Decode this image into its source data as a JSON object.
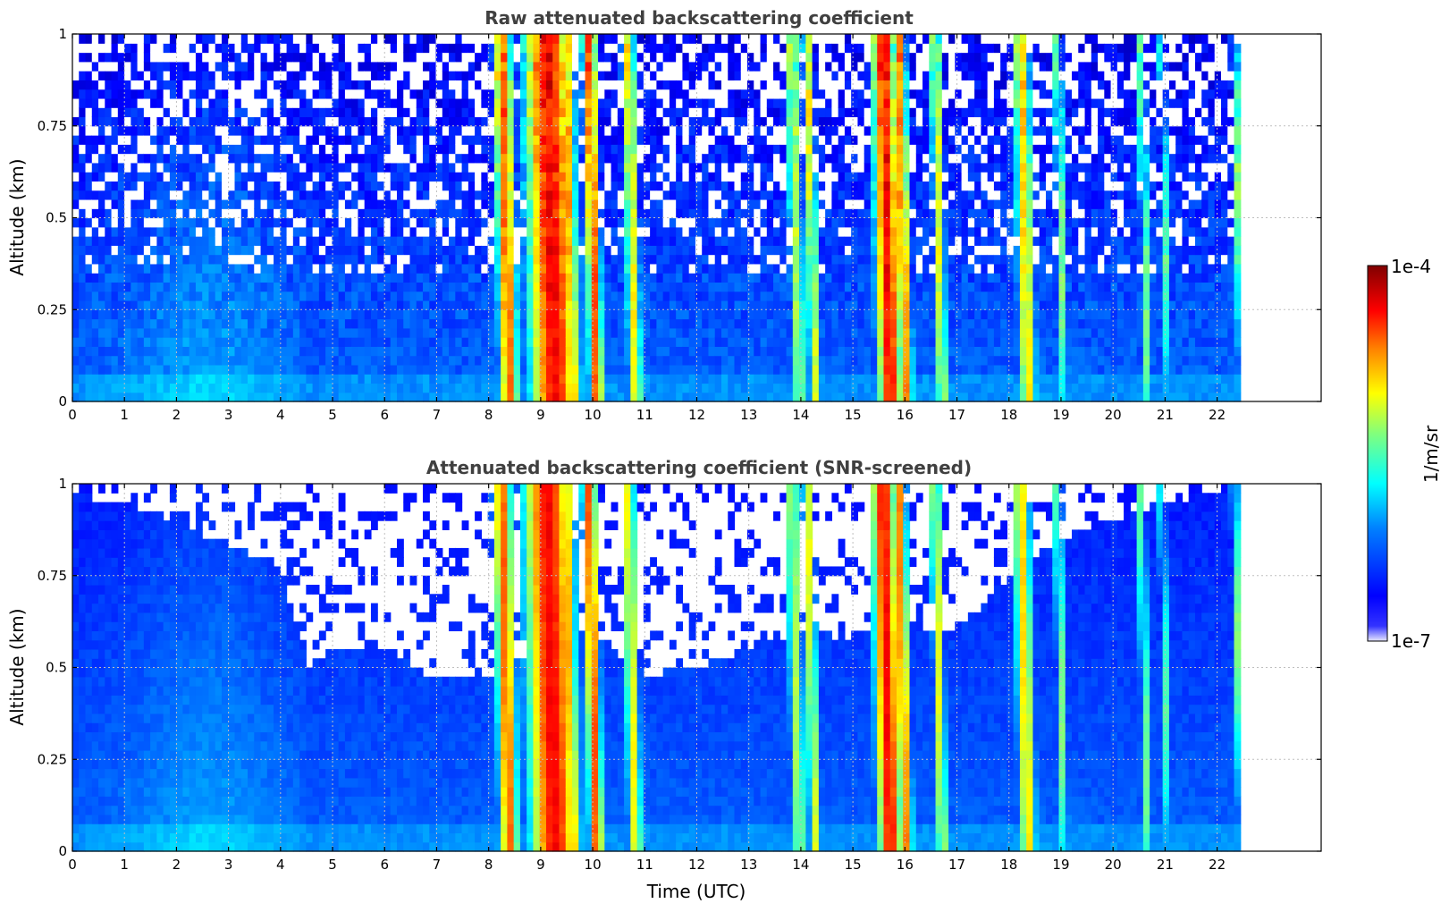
{
  "chart_data": [
    {
      "type": "heatmap",
      "title": "Raw attenuated backscattering coefficient",
      "xlabel": "",
      "ylabel": "Altitude (km)",
      "xlim": [
        0,
        24
      ],
      "ylim": [
        0,
        1
      ],
      "xticks": [
        "0",
        "1",
        "2",
        "3",
        "4",
        "5",
        "6",
        "7",
        "8",
        "9",
        "10",
        "11",
        "12",
        "13",
        "14",
        "15",
        "16",
        "17",
        "18",
        "19",
        "20",
        "21",
        "22"
      ],
      "yticks": [
        "0",
        "0.25",
        "0.5",
        "0.75",
        "1"
      ],
      "grid": true,
      "data_end_time": 22.45,
      "screened": false,
      "colormap": "jet",
      "color_scale": "log",
      "color_range": [
        1e-07,
        0.0001
      ],
      "features": [
        {
          "t": 8.33,
          "width": 0.2,
          "intensity": 0.78,
          "label": "vertical streak"
        },
        {
          "t": 9.2,
          "width": 0.5,
          "intensity": 0.88,
          "label": "vertical streak"
        },
        {
          "t": 9.55,
          "width": 0.15,
          "intensity": 0.7,
          "label": "vertical streak"
        },
        {
          "t": 10.0,
          "width": 0.15,
          "intensity": 0.8,
          "label": "vertical streak"
        },
        {
          "t": 10.75,
          "width": 0.15,
          "intensity": 0.62,
          "label": "vertical streak"
        },
        {
          "t": 13.9,
          "width": 0.15,
          "intensity": 0.55,
          "label": "vertical streak"
        },
        {
          "t": 14.2,
          "width": 0.12,
          "intensity": 0.6,
          "label": "vertical streak"
        },
        {
          "t": 15.65,
          "width": 0.25,
          "intensity": 0.88,
          "label": "vertical streak"
        },
        {
          "t": 15.95,
          "width": 0.15,
          "intensity": 0.75,
          "label": "vertical streak"
        },
        {
          "t": 16.65,
          "width": 0.12,
          "intensity": 0.6,
          "label": "vertical streak"
        },
        {
          "t": 18.3,
          "width": 0.18,
          "intensity": 0.66,
          "label": "vertical streak"
        },
        {
          "t": 19.0,
          "width": 0.1,
          "intensity": 0.5,
          "label": "vertical streak"
        },
        {
          "t": 20.6,
          "width": 0.1,
          "intensity": 0.48,
          "label": "vertical streak"
        },
        {
          "t": 21.0,
          "width": 0.08,
          "intensity": 0.45,
          "label": "vertical streak"
        },
        {
          "t": 22.4,
          "width": 0.08,
          "intensity": 0.5,
          "label": "vertical streak"
        }
      ]
    },
    {
      "type": "heatmap",
      "title": "Attenuated backscattering coefficient (SNR-screened)",
      "xlabel": "Time (UTC)",
      "ylabel": "Altitude (km)",
      "xlim": [
        0,
        24
      ],
      "ylim": [
        0,
        1
      ],
      "xticks": [
        "0",
        "1",
        "2",
        "3",
        "4",
        "5",
        "6",
        "7",
        "8",
        "9",
        "10",
        "11",
        "12",
        "13",
        "14",
        "15",
        "16",
        "17",
        "18",
        "19",
        "20",
        "21",
        "22"
      ],
      "yticks": [
        "0",
        "0.25",
        "0.5",
        "0.75",
        "1"
      ],
      "grid": true,
      "data_end_time": 22.45,
      "screened": true,
      "colormap": "jet",
      "color_scale": "log",
      "color_range": [
        1e-07,
        0.0001
      ],
      "screen_threshold_altitude": [
        [
          0,
          0.97
        ],
        [
          1,
          0.95
        ],
        [
          2,
          0.9
        ],
        [
          3,
          0.83
        ],
        [
          4,
          0.78
        ],
        [
          4.5,
          0.5
        ],
        [
          5,
          0.55
        ],
        [
          6,
          0.55
        ],
        [
          7,
          0.47
        ],
        [
          8,
          0.48
        ],
        [
          9,
          0.55
        ],
        [
          10,
          0.6
        ],
        [
          11,
          0.48
        ],
        [
          12,
          0.5
        ],
        [
          13,
          0.55
        ],
        [
          14,
          0.6
        ],
        [
          15,
          0.58
        ],
        [
          16,
          0.62
        ],
        [
          17,
          0.6
        ],
        [
          18,
          0.75
        ],
        [
          19,
          0.85
        ],
        [
          20,
          0.9
        ],
        [
          21,
          0.95
        ],
        [
          22,
          0.98
        ],
        [
          22.45,
          1.0
        ]
      ]
    }
  ],
  "colorbar": {
    "label": "1/m/sr",
    "min_label": "1e-7",
    "max_label": "1e-4",
    "colormap": "jet"
  }
}
